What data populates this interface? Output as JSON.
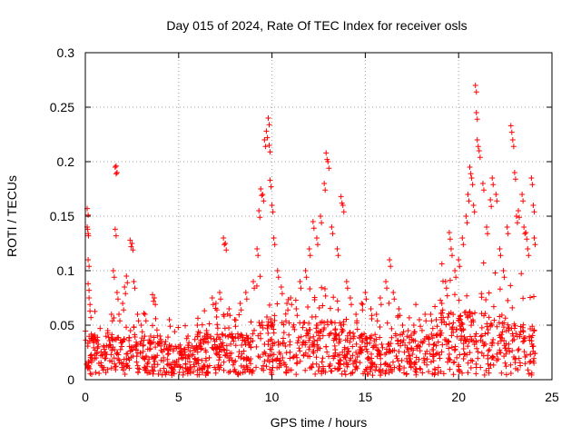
{
  "chart_data": {
    "type": "scatter",
    "title": "Day 015 of 2024, Rate Of TEC Index for receiver osls",
    "xlabel": "GPS time / hours",
    "ylabel": "ROTI / TECUs",
    "xlim": [
      0,
      25
    ],
    "ylim": [
      0,
      0.3
    ],
    "xticks": [
      0,
      5,
      10,
      15,
      20,
      25
    ],
    "yticks": [
      0,
      0.05,
      0.1,
      0.15,
      0.2,
      0.25,
      0.3
    ],
    "xtick_labels": [
      "0",
      "5",
      "10",
      "15",
      "20",
      "25"
    ],
    "ytick_labels": [
      "0",
      "0.05",
      "0.1",
      "0.15",
      "0.2",
      "0.25",
      "0.3"
    ],
    "grid": true,
    "marker": "+",
    "color": "#ff0000",
    "series": [
      {
        "name": "ROTI",
        "points": [
          [
            0.1,
            0.157
          ],
          [
            0.1,
            0.14
          ],
          [
            0.12,
            0.138
          ],
          [
            0.15,
            0.11
          ],
          [
            0.15,
            0.088
          ],
          [
            0.2,
            0.075
          ],
          [
            0.25,
            0.063
          ],
          [
            0.4,
            0.04
          ],
          [
            0.6,
            0.035
          ],
          [
            1.0,
            0.03
          ],
          [
            1.2,
            0.045
          ],
          [
            1.4,
            0.06
          ],
          [
            1.5,
            0.1
          ],
          [
            1.6,
            0.138
          ],
          [
            1.6,
            0.195
          ],
          [
            1.65,
            0.196
          ],
          [
            1.7,
            0.08
          ],
          [
            1.8,
            0.06
          ],
          [
            2.0,
            0.07
          ],
          [
            2.1,
            0.085
          ],
          [
            2.2,
            0.095
          ],
          [
            2.4,
            0.128
          ],
          [
            2.5,
            0.125
          ],
          [
            2.6,
            0.09
          ],
          [
            2.8,
            0.06
          ],
          [
            3.0,
            0.05
          ],
          [
            3.2,
            0.06
          ],
          [
            3.5,
            0.04
          ],
          [
            3.6,
            0.078
          ],
          [
            3.7,
            0.075
          ],
          [
            4.0,
            0.04
          ],
          [
            4.3,
            0.035
          ],
          [
            4.5,
            0.055
          ],
          [
            5.0,
            0.03
          ],
          [
            5.5,
            0.04
          ],
          [
            6.0,
            0.05
          ],
          [
            6.5,
            0.045
          ],
          [
            6.8,
            0.075
          ],
          [
            7.0,
            0.07
          ],
          [
            7.2,
            0.08
          ],
          [
            7.4,
            0.13
          ],
          [
            7.5,
            0.125
          ],
          [
            7.7,
            0.065
          ],
          [
            8.0,
            0.055
          ],
          [
            8.3,
            0.07
          ],
          [
            8.6,
            0.08
          ],
          [
            9.0,
            0.09
          ],
          [
            9.2,
            0.12
          ],
          [
            9.3,
            0.155
          ],
          [
            9.4,
            0.175
          ],
          [
            9.5,
            0.17
          ],
          [
            9.6,
            0.22
          ],
          [
            9.7,
            0.228
          ],
          [
            9.8,
            0.24
          ],
          [
            9.85,
            0.215
          ],
          [
            9.9,
            0.183
          ],
          [
            10.0,
            0.16
          ],
          [
            10.1,
            0.13
          ],
          [
            10.3,
            0.1
          ],
          [
            10.5,
            0.085
          ],
          [
            10.8,
            0.07
          ],
          [
            11.0,
            0.075
          ],
          [
            11.3,
            0.065
          ],
          [
            11.5,
            0.09
          ],
          [
            11.8,
            0.1
          ],
          [
            12.0,
            0.12
          ],
          [
            12.2,
            0.145
          ],
          [
            12.4,
            0.13
          ],
          [
            12.6,
            0.15
          ],
          [
            12.8,
            0.18
          ],
          [
            12.9,
            0.208
          ],
          [
            13.0,
            0.2
          ],
          [
            13.2,
            0.14
          ],
          [
            13.5,
            0.12
          ],
          [
            13.7,
            0.168
          ],
          [
            13.8,
            0.16
          ],
          [
            14.0,
            0.09
          ],
          [
            14.2,
            0.075
          ],
          [
            14.5,
            0.06
          ],
          [
            14.8,
            0.07
          ],
          [
            15.0,
            0.08
          ],
          [
            15.3,
            0.065
          ],
          [
            15.6,
            0.06
          ],
          [
            15.8,
            0.075
          ],
          [
            16.1,
            0.09
          ],
          [
            16.3,
            0.11
          ],
          [
            16.5,
            0.08
          ],
          [
            16.8,
            0.065
          ],
          [
            17.0,
            0.05
          ],
          [
            17.3,
            0.045
          ],
          [
            17.6,
            0.05
          ],
          [
            17.9,
            0.055
          ],
          [
            18.2,
            0.06
          ],
          [
            18.5,
            0.06
          ],
          [
            18.8,
            0.055
          ],
          [
            19.1,
            0.07
          ],
          [
            19.3,
            0.09
          ],
          [
            19.5,
            0.135
          ],
          [
            19.6,
            0.12
          ],
          [
            19.8,
            0.1
          ],
          [
            20.0,
            0.11
          ],
          [
            20.2,
            0.13
          ],
          [
            20.4,
            0.15
          ],
          [
            20.5,
            0.17
          ],
          [
            20.6,
            0.195
          ],
          [
            20.7,
            0.185
          ],
          [
            20.8,
            0.16
          ],
          [
            20.9,
            0.27
          ],
          [
            20.95,
            0.245
          ],
          [
            21.0,
            0.22
          ],
          [
            21.1,
            0.21
          ],
          [
            21.3,
            0.18
          ],
          [
            21.5,
            0.14
          ],
          [
            21.7,
            0.165
          ],
          [
            21.8,
            0.185
          ],
          [
            22.0,
            0.17
          ],
          [
            22.2,
            0.12
          ],
          [
            22.4,
            0.1
          ],
          [
            22.6,
            0.14
          ],
          [
            22.8,
            0.233
          ],
          [
            22.9,
            0.22
          ],
          [
            23.0,
            0.19
          ],
          [
            23.1,
            0.15
          ],
          [
            23.2,
            0.155
          ],
          [
            23.4,
            0.17
          ],
          [
            23.5,
            0.14
          ],
          [
            23.6,
            0.135
          ],
          [
            23.7,
            0.12
          ],
          [
            23.9,
            0.185
          ],
          [
            24.0,
            0.16
          ],
          [
            24.05,
            0.13
          ]
        ]
      }
    ]
  }
}
